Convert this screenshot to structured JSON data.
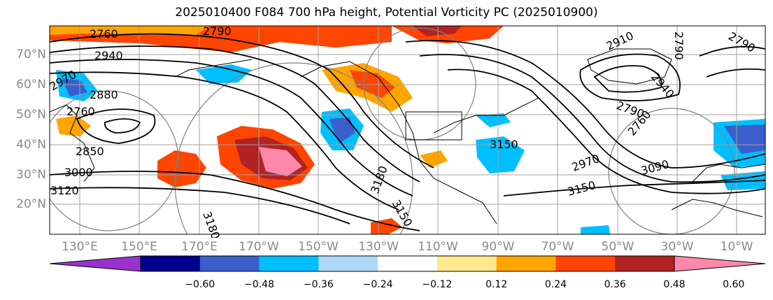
{
  "title": "2025010400 F084 700 hPa height, Potential Vorticity PC (2025010900)",
  "lat_labels": [
    "70°N",
    "60°N",
    "50°N",
    "40°N",
    "30°N",
    "20°N"
  ],
  "lon_labels": [
    "130°E",
    "150°E",
    "170°E",
    "170°W",
    "150°W",
    "130°W",
    "110°W",
    "90°W",
    "70°W",
    "50°W",
    "30°W",
    "10°W"
  ],
  "colorbar": {
    "colors": [
      "#9932cc",
      "#00008b",
      "#3a5fcd",
      "#00bfff",
      "#add8f7",
      "#ffffff",
      "#ffe98a",
      "#ffa500",
      "#ff4500",
      "#b22222",
      "#ff88aa"
    ],
    "ticks": [
      "−0.60",
      "−0.48",
      "−0.36",
      "−0.24",
      "−0.12",
      "0.12",
      "0.24",
      "0.36",
      "0.48",
      "0.60"
    ]
  },
  "contour_labels": [
    "2760",
    "2790",
    "2940",
    "2970",
    "2880",
    "2760",
    "2850",
    "3000",
    "3120",
    "3180",
    "3180",
    "3150",
    "2910",
    "2790",
    "2760",
    "3090",
    "3150",
    "2970",
    "2940",
    "2790",
    "2790",
    "3150"
  ]
}
